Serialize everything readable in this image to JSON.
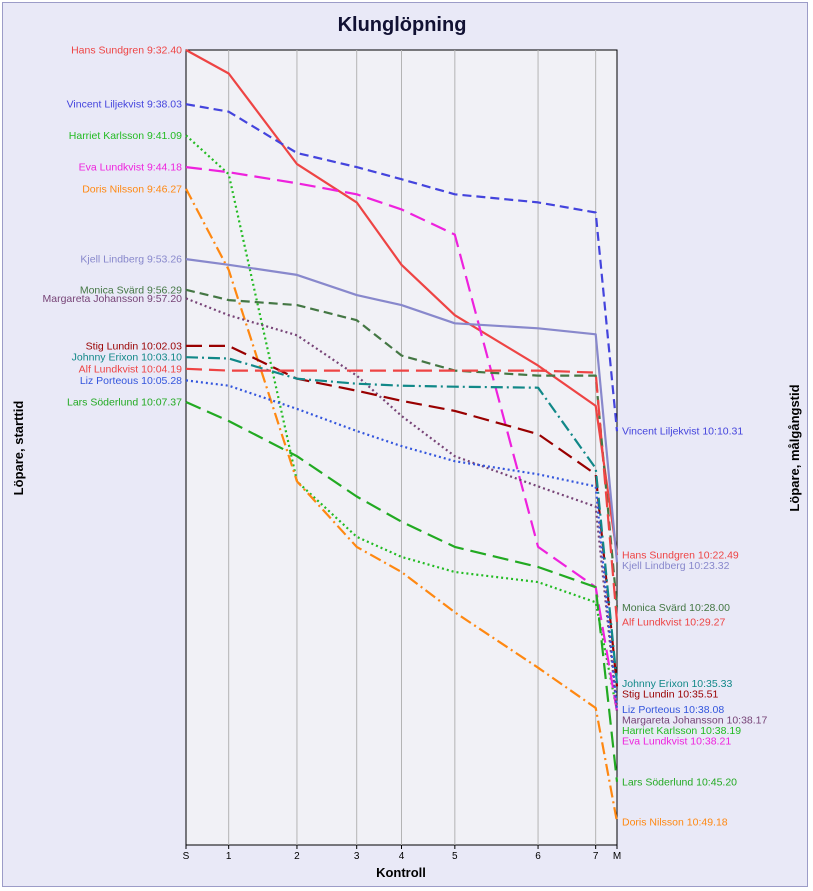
{
  "chart_data": {
    "type": "line",
    "title": "Klunglöpning",
    "xlabel": "Kontroll",
    "ylabel_left": "Löpare, starttid",
    "ylabel_right": "Löpare, målgångstid",
    "categories": [
      "S",
      "1",
      "2",
      "3",
      "4",
      "5",
      "6",
      "7",
      "M"
    ],
    "x": [
      0,
      1,
      2.6,
      4,
      5.05,
      6.3,
      8.25,
      9.6,
      10.1
    ],
    "grid": "vertical",
    "y_unit": "minutes after 9:30:00 (axis inverted, earlier at top)",
    "ylim": [
      2.67,
      81.6
    ],
    "series": [
      {
        "name": "Hans Sundgren",
        "start_label": "Hans Sundgren 9:32.40",
        "finish_label": "Hans Sundgren 10:22.49",
        "color": "#ee4444",
        "dash": "solid",
        "values": [
          2.67,
          5.0,
          14.0,
          17.8,
          24.0,
          29.0,
          34.0,
          38.0,
          52.82
        ]
      },
      {
        "name": "Vincent Liljekvist",
        "start_label": "Vincent Liljekvist 9:38.03",
        "finish_label": "Vincent Liljekvist 10:10.31",
        "color": "#4444dd",
        "dash": "dash",
        "values": [
          8.05,
          8.8,
          12.9,
          14.3,
          15.5,
          17.0,
          17.8,
          18.8,
          40.52
        ]
      },
      {
        "name": "Harriet Karlsson",
        "start_label": "Harriet Karlsson 9:41.09",
        "finish_label": "Harriet Karlsson 10:38.19",
        "color": "#22bb22",
        "dash": "dot",
        "values": [
          11.15,
          15.0,
          45.5,
          51.0,
          53.0,
          54.5,
          55.5,
          57.5,
          68.32
        ]
      },
      {
        "name": "Eva Lundkvist",
        "start_label": "Eva Lundkvist 9:44.18",
        "finish_label": "Eva Lundkvist 10:38.21",
        "color": "#ee22dd",
        "dash": "longdash",
        "values": [
          14.3,
          14.8,
          15.9,
          17.0,
          18.5,
          21.0,
          52.0,
          56.0,
          68.35
        ]
      },
      {
        "name": "Doris Nilsson",
        "start_label": "Doris Nilsson 9:46.27",
        "finish_label": "Doris Nilsson 10:49.18",
        "color": "#ff8811",
        "dash": "dashdot",
        "values": [
          16.45,
          24.5,
          45.5,
          52.0,
          54.5,
          58.5,
          64.0,
          68.0,
          79.3
        ]
      },
      {
        "name": "Kjell Lindberg",
        "start_label": "Kjell Lindberg 9:53.26",
        "finish_label": "Kjell Lindberg 10:23.32",
        "color": "#8888cc",
        "dash": "solid",
        "values": [
          23.43,
          24.0,
          25.0,
          27.0,
          28.0,
          29.8,
          30.3,
          30.9,
          53.53
        ]
      },
      {
        "name": "Monica Svärd",
        "start_label": "Monica Svärd 9:56.29",
        "finish_label": "Monica Svärd 10:28.00",
        "color": "#447744",
        "dash": "dash",
        "values": [
          26.48,
          27.5,
          28.0,
          29.5,
          33.0,
          34.5,
          35.0,
          35.0,
          58.0
        ]
      },
      {
        "name": "Margareta Johansson",
        "start_label": "Margareta Johansson 9:57.20",
        "finish_label": "Margareta Johansson 10:38.17",
        "color": "#774477",
        "dash": "dot",
        "values": [
          27.33,
          29.0,
          31.0,
          35.0,
          39.0,
          43.0,
          46.0,
          48.0,
          68.28
        ]
      },
      {
        "name": "Stig Lundin",
        "start_label": "Stig Lundin 10:02.03",
        "finish_label": "Stig Lundin 10:35.51",
        "color": "#990000",
        "dash": "longdash",
        "values": [
          32.05,
          32.05,
          35.3,
          36.5,
          37.5,
          38.5,
          40.8,
          44.8,
          65.85
        ]
      },
      {
        "name": "Johnny Erixon",
        "start_label": "Johnny Erixon 10:03.10",
        "finish_label": "Johnny Erixon 10:35.33",
        "color": "#118888",
        "dash": "dashdot",
        "values": [
          33.17,
          33.3,
          35.3,
          35.8,
          36.0,
          36.1,
          36.2,
          44.2,
          65.55
        ]
      },
      {
        "name": "Alf Lundkvist",
        "start_label": "Alf Lundkvist 10:04.19",
        "finish_label": "Alf Lundkvist 10:29.27",
        "color": "#ee4444",
        "dash": "longdash",
        "values": [
          34.32,
          34.5,
          34.5,
          34.5,
          34.5,
          34.5,
          34.5,
          34.7,
          59.45
        ]
      },
      {
        "name": "Liz Porteous",
        "start_label": "Liz Porteous 10:05.28",
        "finish_label": "Liz Porteous 10:38.08",
        "color": "#3355dd",
        "dash": "dot",
        "values": [
          35.47,
          36.0,
          38.3,
          40.5,
          42.0,
          43.5,
          44.8,
          46.0,
          68.13
        ]
      },
      {
        "name": "Lars Söderlund",
        "start_label": "Lars Söderlund 10:07.37",
        "finish_label": "Lars Söderlund 10:45.20",
        "color": "#22aa22",
        "dash": "longdash",
        "values": [
          37.62,
          39.5,
          43.0,
          47.0,
          49.5,
          52.0,
          54.0,
          56.0,
          75.33
        ]
      }
    ]
  }
}
